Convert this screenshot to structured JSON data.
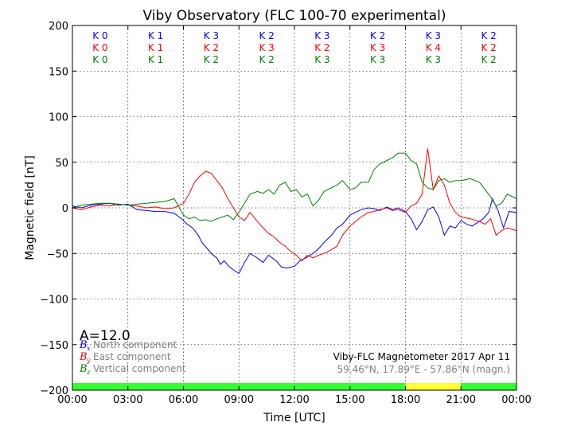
{
  "chart_data": {
    "type": "line",
    "title": "Viby Observatory (FLC 100-70 experimental)",
    "xlabel": "Time [UTC]",
    "ylabel": "Magnetic field [nT]",
    "xlim": [
      0,
      24
    ],
    "ylim": [
      -200,
      200
    ],
    "xticks": [
      {
        "v": 0,
        "label": "00:00"
      },
      {
        "v": 3,
        "label": "03:00"
      },
      {
        "v": 6,
        "label": "06:00"
      },
      {
        "v": 9,
        "label": "09:00"
      },
      {
        "v": 12,
        "label": "12:00"
      },
      {
        "v": 15,
        "label": "15:00"
      },
      {
        "v": 18,
        "label": "18:00"
      },
      {
        "v": 21,
        "label": "21:00"
      },
      {
        "v": 24,
        "label": "00:00"
      }
    ],
    "yticks": [
      {
        "v": -200,
        "label": "−200"
      },
      {
        "v": -150,
        "label": "−150"
      },
      {
        "v": -100,
        "label": "−100"
      },
      {
        "v": -50,
        "label": "−50"
      },
      {
        "v": 0,
        "label": "0"
      },
      {
        "v": 50,
        "label": "50"
      },
      {
        "v": 100,
        "label": "100"
      },
      {
        "v": 150,
        "label": "150"
      },
      {
        "v": 200,
        "label": "200"
      }
    ],
    "grid": true,
    "k_index_rows": [
      {
        "color": "#0000ff",
        "labels": [
          "K 0",
          "K 1",
          "K 3",
          "K 2",
          "K 3",
          "K 2",
          "K 3",
          "K 2"
        ]
      },
      {
        "color": "#ff0000",
        "labels": [
          "K 0",
          "K 1",
          "K 2",
          "K 3",
          "K 2",
          "K 3",
          "K 4",
          "K 2"
        ]
      },
      {
        "color": "#008000",
        "labels": [
          "K 0",
          "K 1",
          "K 2",
          "K 2",
          "K 3",
          "K 3",
          "K 3",
          "K 2"
        ]
      }
    ],
    "a_index": "A=12.0",
    "legend": {
      "placement": "bottom-left",
      "items": [
        {
          "symbol": "B",
          "sub": "x",
          "label": "North component",
          "color": "#0000ff"
        },
        {
          "symbol": "B",
          "sub": "y",
          "label": "East component",
          "color": "#ff0000"
        },
        {
          "symbol": "B",
          "sub": "z",
          "label": "Vertical component",
          "color": "#008000"
        }
      ]
    },
    "info_line1": "Viby-FLC Magnetometer 2017 Apr 11",
    "info_line2": "59.46°N, 17.89°E - 57.86°N (magn.)",
    "day_night_bar": [
      {
        "from": 0,
        "to": 18,
        "color": "#33ff33"
      },
      {
        "from": 18,
        "to": 21,
        "color": "#ffff33"
      },
      {
        "from": 21,
        "to": 24,
        "color": "#33ff33"
      }
    ],
    "series": [
      {
        "name": "North component",
        "color": "#0000ff",
        "x": [
          0,
          0.5,
          1,
          1.5,
          2,
          2.5,
          3,
          3.5,
          4,
          4.5,
          5,
          5.5,
          5.9,
          6.2,
          6.5,
          6.8,
          7,
          7.3,
          7.5,
          7.8,
          8,
          8.2,
          8.5,
          8.7,
          9,
          9.3,
          9.6,
          10,
          10.3,
          10.6,
          11,
          11.3,
          11.6,
          12,
          12.3,
          12.6,
          13,
          13.3,
          13.6,
          14,
          14.3,
          14.6,
          15,
          15.3,
          15.6,
          16,
          16.3,
          16.6,
          17,
          17.3,
          17.6,
          18,
          18.3,
          18.6,
          18.9,
          19.2,
          19.5,
          19.8,
          20.1,
          20.4,
          20.7,
          21,
          21.3,
          21.6,
          21.9,
          22.2,
          22.5,
          22.7,
          23,
          23.3,
          23.6,
          24
        ],
        "y": [
          2,
          0,
          3,
          4,
          5,
          3,
          4,
          -2,
          -3,
          -4,
          -4,
          -6,
          -12,
          -18,
          -22,
          -30,
          -38,
          -45,
          -50,
          -55,
          -62,
          -58,
          -65,
          -68,
          -72,
          -60,
          -50,
          -55,
          -60,
          -52,
          -58,
          -65,
          -66,
          -64,
          -58,
          -55,
          -50,
          -45,
          -38,
          -30,
          -22,
          -18,
          -8,
          -5,
          -2,
          0,
          -1,
          -3,
          1,
          -2,
          0,
          -4,
          -12,
          -24,
          -15,
          -2,
          1,
          -10,
          -30,
          -20,
          -22,
          -14,
          -18,
          -20,
          -16,
          -12,
          -5,
          10,
          -3,
          -22,
          -4,
          -5
        ]
      },
      {
        "name": "East component",
        "color": "#ff0000",
        "x": [
          0,
          0.5,
          1,
          1.5,
          2,
          2.5,
          3,
          3.5,
          4,
          4.5,
          5,
          5.5,
          6,
          6.3,
          6.6,
          6.9,
          7.2,
          7.5,
          7.8,
          8.1,
          8.4,
          8.7,
          9,
          9.3,
          9.6,
          10,
          10.3,
          10.6,
          10.9,
          11.2,
          11.5,
          11.8,
          12.1,
          12.4,
          12.7,
          13,
          13.3,
          13.6,
          14,
          14.3,
          14.6,
          15,
          15.3,
          15.6,
          16,
          16.3,
          16.6,
          17,
          17.3,
          17.6,
          18,
          18.3,
          18.6,
          18.9,
          19.2,
          19.5,
          19.8,
          20.1,
          20.4,
          20.7,
          21,
          21.5,
          22,
          22.3,
          22.6,
          22.9,
          23.2,
          23.5,
          24
        ],
        "y": [
          0,
          -2,
          1,
          3,
          2,
          4,
          3,
          2,
          0,
          1,
          -1,
          0,
          5,
          15,
          28,
          35,
          40,
          38,
          30,
          22,
          10,
          0,
          -10,
          -14,
          -5,
          -15,
          -22,
          -28,
          -32,
          -38,
          -42,
          -48,
          -52,
          -58,
          -52,
          -55,
          -52,
          -50,
          -46,
          -42,
          -30,
          -20,
          -15,
          -10,
          -5,
          -4,
          -2,
          0,
          -3,
          -2,
          -5,
          2,
          5,
          15,
          65,
          20,
          35,
          25,
          5,
          -5,
          -10,
          -12,
          -15,
          -18,
          -12,
          -30,
          -25,
          -22,
          -25
        ]
      },
      {
        "name": "Vertical component",
        "color": "#008000",
        "x": [
          0,
          0.5,
          1,
          1.5,
          2,
          2.5,
          3,
          3.5,
          4,
          4.5,
          5,
          5.5,
          6,
          6.3,
          6.6,
          6.9,
          7.2,
          7.5,
          7.8,
          8.1,
          8.4,
          8.7,
          9,
          9.3,
          9.6,
          10,
          10.3,
          10.6,
          10.9,
          11.2,
          11.5,
          11.8,
          12.1,
          12.4,
          12.7,
          13,
          13.3,
          13.6,
          14,
          14.3,
          14.6,
          15,
          15.3,
          15.6,
          16,
          16.3,
          16.6,
          17,
          17.3,
          17.6,
          18,
          18.3,
          18.6,
          18.9,
          19.2,
          19.5,
          19.8,
          20.1,
          20.4,
          20.7,
          21,
          21.5,
          22,
          22.3,
          22.6,
          22.9,
          23.2,
          23.5,
          24
        ],
        "y": [
          0,
          3,
          4,
          5,
          5,
          4,
          3,
          4,
          5,
          6,
          7,
          10,
          -8,
          -12,
          -10,
          -14,
          -13,
          -15,
          -12,
          -10,
          -8,
          -13,
          -5,
          5,
          15,
          18,
          16,
          20,
          15,
          25,
          28,
          18,
          20,
          12,
          15,
          2,
          8,
          18,
          22,
          25,
          30,
          20,
          22,
          28,
          28,
          42,
          48,
          52,
          55,
          60,
          60,
          52,
          48,
          28,
          22,
          20,
          30,
          32,
          28,
          30,
          30,
          32,
          28,
          20,
          12,
          2,
          5,
          15,
          10
        ]
      }
    ]
  }
}
